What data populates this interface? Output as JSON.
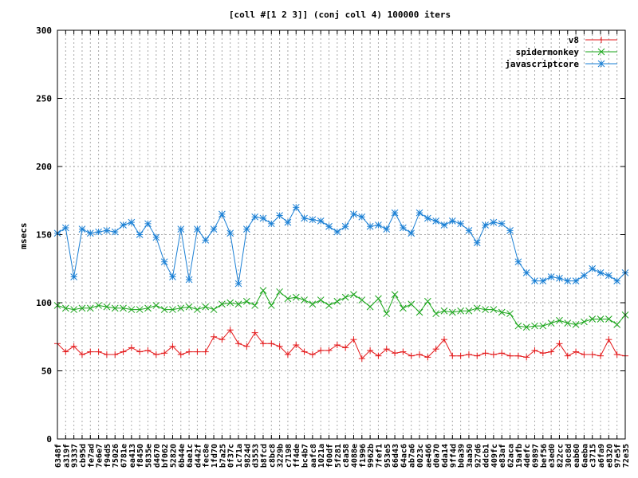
{
  "chart_data": {
    "type": "line",
    "title": "[coll #[1 2 3]] (conj coll 4) 100000 iters",
    "xlabel": "",
    "ylabel": "msecs",
    "ylim": [
      0,
      300
    ],
    "yticks": [
      0,
      50,
      100,
      150,
      200,
      250,
      300
    ],
    "grid": true,
    "legend_position": "top-right",
    "categories": [
      "6348f",
      "a319f",
      "93337",
      "cb95d",
      "fe7ad",
      "7e6e7",
      "f94d5",
      "75026",
      "6781e",
      "ea413",
      "f8450",
      "5835e",
      "d4670",
      "bf062",
      "52820",
      "6b44e",
      "6ae1c",
      "d442f",
      "fec8e",
      "1fd70",
      "b7a25",
      "0f37c",
      "1c71a",
      "9824d",
      "d3553",
      "b8fcd",
      "c8bc8",
      "3229b",
      "c7198",
      "ff4de",
      "bc4b7",
      "aafc8",
      "1021a",
      "f00df",
      "5f281",
      "c8a58",
      "4088e",
      "f1996",
      "9962b",
      "7fef1",
      "953e5",
      "66d43",
      "64ac6",
      "ab7a6",
      "0023c",
      "ae466",
      "d0a70",
      "6da14",
      "9ff4d",
      "b0a39",
      "3aa50",
      "927d6",
      "ddcb1",
      "409fc",
      "e83af",
      "62aca",
      "19afb",
      "4defc",
      "69897",
      "bef56",
      "e3ed0",
      "822cc",
      "30c8d",
      "eab60",
      "6aeba",
      "c3715",
      "a6fa9",
      "e8320",
      "97e5f",
      "72e35"
    ],
    "series": [
      {
        "name": "v8",
        "color": "#e41a1c",
        "values": [
          70,
          64,
          68,
          62,
          64,
          64,
          62,
          62,
          64,
          67,
          64,
          65,
          62,
          63,
          68,
          62,
          64,
          64,
          64,
          75,
          73,
          80,
          70,
          68,
          78,
          70,
          70,
          68,
          62,
          69,
          64,
          62,
          65,
          65,
          69,
          67,
          73,
          59,
          65,
          61,
          66,
          63,
          64,
          61,
          62,
          60,
          66,
          73,
          61,
          61,
          62,
          61,
          63,
          62,
          63,
          61,
          61,
          60,
          65,
          63,
          64,
          70,
          61,
          64,
          62,
          62,
          61,
          73,
          62,
          61
        ]
      },
      {
        "name": "spidermonkey",
        "color": "#1aa51a",
        "values": [
          98,
          96,
          95,
          96,
          96,
          98,
          97,
          96,
          96,
          95,
          95,
          96,
          98,
          95,
          95,
          96,
          97,
          95,
          97,
          95,
          99,
          100,
          99,
          101,
          98,
          109,
          98,
          108,
          103,
          104,
          102,
          99,
          102,
          98,
          101,
          104,
          106,
          102,
          97,
          103,
          92,
          106,
          96,
          99,
          93,
          101,
          92,
          94,
          93,
          94,
          94,
          96,
          95,
          95,
          93,
          92,
          83,
          82,
          83,
          83,
          85,
          87,
          85,
          84,
          86,
          88,
          88,
          88,
          84,
          91
        ]
      },
      {
        "name": "javascriptcore",
        "color": "#1a7fd4",
        "values": [
          151,
          155,
          119,
          154,
          151,
          152,
          153,
          152,
          157,
          159,
          150,
          158,
          148,
          130,
          119,
          154,
          117,
          154,
          146,
          154,
          165,
          151,
          114,
          154,
          163,
          162,
          158,
          164,
          159,
          170,
          162,
          161,
          160,
          156,
          152,
          156,
          165,
          163,
          156,
          157,
          154,
          166,
          155,
          151,
          166,
          162,
          160,
          157,
          160,
          158,
          153,
          144,
          157,
          159,
          158,
          153,
          130,
          122,
          116,
          116,
          119,
          118,
          116,
          116,
          120,
          125,
          122,
          120,
          116,
          122
        ]
      }
    ]
  }
}
